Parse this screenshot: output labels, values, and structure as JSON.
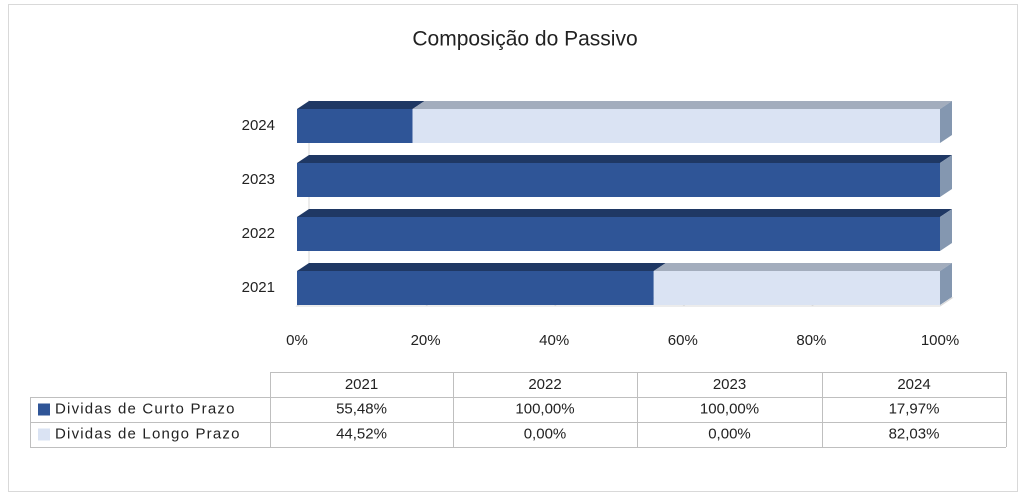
{
  "chart_data": {
    "type": "bar",
    "orientation": "horizontal",
    "stacked": true,
    "title": "Composição do Passivo",
    "categories": [
      "2021",
      "2022",
      "2023",
      "2024"
    ],
    "series": [
      {
        "name": "Dividas de Curto Prazo",
        "color": "#2f5597",
        "values": [
          55.48,
          100,
          100,
          17.97
        ],
        "value_labels": [
          "55,48%",
          "100,00%",
          "100,00%",
          "17,97%"
        ]
      },
      {
        "name": "Dividas de Longo Prazo",
        "color": "#dae3f3",
        "values": [
          44.52,
          0,
          0,
          82.03
        ],
        "value_labels": [
          "44,52%",
          "0,00%",
          "0,00%",
          "82,03%"
        ]
      }
    ],
    "xlim": [
      0,
      100
    ],
    "xticks": [
      {
        "value": 0,
        "label": "0%"
      },
      {
        "value": 20,
        "label": "20%"
      },
      {
        "value": 40,
        "label": "40%"
      },
      {
        "value": 60,
        "label": "60%"
      },
      {
        "value": 80,
        "label": "80%"
      },
      {
        "value": 100,
        "label": "100%"
      }
    ],
    "data_table": true
  }
}
